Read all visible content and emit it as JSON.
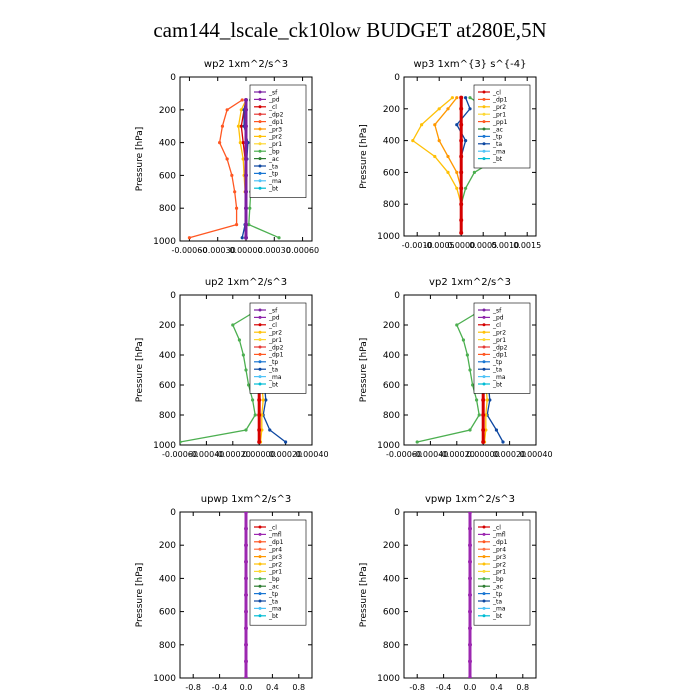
{
  "page_title": "cam144_lscale_ck10low  BUDGET at280E,5N",
  "colors": {
    "sf": "#7b1fa2",
    "pd": "#8e24aa",
    "cl": "#d50000",
    "dp2": "#e53935",
    "dp1": "#ff5722",
    "pr3": "#ff9800",
    "pr2": "#ffc107",
    "pr1": "#fdd835",
    "bp": "#4caf50",
    "ac": "#2e7d32",
    "ta": "#0d47a1",
    "tp": "#1976d2",
    "ma": "#4fc3f7",
    "bt": "#00bcd4",
    "mfl": "#9c27b0",
    "pr4": "#ff7043"
  },
  "chart_data": [
    {
      "type": "line",
      "title": "wp2  1xm^2/s^3",
      "ylabel": "Pressure [hPa]",
      "ylim": [
        1000,
        0
      ],
      "xlim": [
        -0.0007,
        0.0007
      ],
      "xticks": [
        -0.0006,
        -0.0003,
        0.0,
        0.0003,
        0.0006
      ],
      "xticklabels": [
        "-0.00060",
        "-0.00030",
        "0.00000",
        "0.00030",
        "0.00060"
      ],
      "yticks": [
        0,
        200,
        400,
        600,
        800,
        1000
      ],
      "legend": [
        "_sf",
        "_pd",
        "_cl",
        "_dp2",
        "_dp1",
        "_pr3",
        "_pr2",
        "_pr1",
        "_bp",
        "_ac",
        "_ta",
        "_tp",
        "_ma",
        "_bt"
      ],
      "pressure": [
        140,
        200,
        300,
        400,
        500,
        600,
        700,
        800,
        900,
        980
      ],
      "series": [
        {
          "name": "_cl",
          "color_key": "cl",
          "values": [
            0,
            -2e-05,
            -5e-05,
            -3e-05,
            -1e-05,
            0,
            0,
            0,
            0,
            0
          ]
        },
        {
          "name": "_dp1",
          "color_key": "dp1",
          "values": [
            -4e-05,
            -0.0002,
            -0.00025,
            -0.00028,
            -0.0002,
            -0.00015,
            -0.00012,
            -0.0001,
            -0.0001,
            -0.0006
          ]
        },
        {
          "name": "_pr2",
          "color_key": "pr2",
          "values": [
            0,
            -5e-05,
            -8e-05,
            -6e-05,
            -3e-05,
            -2e-05,
            -1e-05,
            0,
            0,
            0
          ]
        },
        {
          "name": "_bp",
          "color_key": "bp",
          "values": [
            5e-05,
            0.0001,
            0.0002,
            0.00028,
            0.00022,
            0.0001,
            5e-05,
            4e-05,
            3e-05,
            0.00035
          ]
        },
        {
          "name": "_ta",
          "color_key": "ta",
          "values": [
            0,
            -2e-05,
            -2e-05,
            2e-05,
            1e-05,
            0,
            0,
            0,
            -1e-05,
            -4e-05
          ]
        },
        {
          "name": "_bt",
          "color_key": "sf",
          "values": [
            0,
            0,
            0,
            0,
            0,
            0,
            0,
            0,
            0,
            0
          ]
        }
      ]
    },
    {
      "type": "line",
      "title": "wp3  1xm^{3} s^{-4}",
      "ylabel": "Pressure [hPa]",
      "ylim": [
        1000,
        0
      ],
      "xlim": [
        -0.0013,
        0.0017
      ],
      "xticks": [
        -0.001,
        -0.0005,
        0.0,
        0.0005,
        0.001,
        0.0015
      ],
      "xticklabels": [
        "-0.0010",
        "-0.0005",
        "0.0000",
        "0.0005",
        "0.0010",
        "0.0015"
      ],
      "yticks": [
        0,
        200,
        400,
        600,
        800,
        1000
      ],
      "legend": [
        "_cl",
        "_dp1",
        "_pr2",
        "_pr1",
        "_pp1",
        "_ac",
        "_tp",
        "_ta",
        "_ma",
        "_bt"
      ],
      "pressure": [
        130,
        200,
        300,
        400,
        500,
        600,
        700,
        800,
        900,
        980
      ],
      "series": [
        {
          "name": "_pr2",
          "color_key": "pr2",
          "values": [
            -0.0002,
            -0.0005,
            -0.0009,
            -0.0011,
            -0.0006,
            -0.0003,
            -0.0001,
            0,
            0,
            0
          ]
        },
        {
          "name": "_pr1",
          "color_key": "pr3",
          "values": [
            -0.0001,
            -0.0003,
            -0.0006,
            -0.0005,
            -0.0003,
            -0.0001,
            0,
            0,
            0,
            0
          ]
        },
        {
          "name": "_ac",
          "color_key": "bp",
          "values": [
            0.0002,
            0.0006,
            0.0011,
            0.0015,
            0.0009,
            0.0003,
            0.0001,
            0,
            0,
            0
          ]
        },
        {
          "name": "_tp",
          "color_key": "ta",
          "values": [
            0.0001,
            0.0002,
            -0.0001,
            0.0001,
            0.0,
            0.0,
            0,
            0,
            0,
            0
          ]
        },
        {
          "name": "_bt",
          "color_key": "cl",
          "values": [
            0,
            0,
            0,
            0,
            0,
            0,
            0,
            0,
            0,
            0
          ]
        }
      ]
    },
    {
      "type": "line",
      "title": "up2  1xm^2/s^3",
      "ylabel": "Pressure [hPa]",
      "ylim": [
        1000,
        0
      ],
      "xlim": [
        -0.0006,
        0.0004
      ],
      "xticks": [
        -0.0006,
        -0.0004,
        -0.0002,
        0.0,
        0.0002,
        0.0004
      ],
      "xticklabels": [
        "-0.00060",
        "-0.00040",
        "-0.00020",
        "0.00000",
        "0.00020",
        "0.00040"
      ],
      "yticks": [
        0,
        200,
        400,
        600,
        800,
        1000
      ],
      "legend": [
        "_sf",
        "_pd",
        "_cl",
        "_pr2",
        "_pr1",
        "_dp2",
        "_dp1",
        "_tp",
        "_ta",
        "_ma",
        "_bt"
      ],
      "pressure": [
        120,
        200,
        300,
        400,
        500,
        600,
        700,
        800,
        900,
        980
      ],
      "series": [
        {
          "name": "_dp1",
          "color_key": "bp",
          "values": [
            -5e-05,
            -0.0002,
            -0.00015,
            -0.00012,
            -0.0001,
            -8e-05,
            -5e-05,
            -3e-05,
            -0.0001,
            -0.0006
          ]
        },
        {
          "name": "_tp",
          "color_key": "ta",
          "values": [
            2e-05,
            3e-05,
            4e-05,
            3e-05,
            3e-05,
            4e-05,
            5e-05,
            3e-05,
            8e-05,
            0.0002
          ]
        },
        {
          "name": "_pr1",
          "color_key": "pr2",
          "values": [
            0,
            1e-05,
            1e-05,
            1e-05,
            1e-05,
            2e-05,
            3e-05,
            2e-05,
            2e-05,
            1e-05
          ]
        },
        {
          "name": "_bt",
          "color_key": "cl",
          "values": [
            0,
            0,
            0,
            0,
            0,
            0,
            0,
            0,
            0,
            0
          ]
        }
      ]
    },
    {
      "type": "line",
      "title": "vp2  1xm^2/s^3",
      "ylabel": "Pressure [hPa]",
      "ylim": [
        1000,
        0
      ],
      "xlim": [
        -0.0006,
        0.0004
      ],
      "xticks": [
        -0.0006,
        -0.0004,
        -0.0002,
        0.0,
        0.0002,
        0.0004
      ],
      "xticklabels": [
        "-0.00060",
        "-0.00040",
        "-0.00020",
        "0.00000",
        "0.00020",
        "0.00040"
      ],
      "yticks": [
        0,
        200,
        400,
        600,
        800,
        1000
      ],
      "legend": [
        "_sf",
        "_pd",
        "_cl",
        "_pr2",
        "_pr1",
        "_dp2",
        "_dp1",
        "_tp",
        "_ta",
        "_ma",
        "_bt"
      ],
      "pressure": [
        120,
        200,
        300,
        400,
        500,
        600,
        700,
        800,
        900,
        980
      ],
      "series": [
        {
          "name": "_dp1",
          "color_key": "bp",
          "values": [
            -5e-05,
            -0.0002,
            -0.00015,
            -0.00012,
            -0.0001,
            -8e-05,
            -5e-05,
            -3e-05,
            -0.0001,
            -0.0005
          ]
        },
        {
          "name": "_tp",
          "color_key": "ta",
          "values": [
            2e-05,
            3e-05,
            4e-05,
            3e-05,
            3e-05,
            4e-05,
            5e-05,
            3e-05,
            0.0001,
            0.00015
          ]
        },
        {
          "name": "_pr1",
          "color_key": "pr2",
          "values": [
            0,
            1e-05,
            1e-05,
            1e-05,
            1e-05,
            2e-05,
            3e-05,
            2e-05,
            2e-05,
            1e-05
          ]
        },
        {
          "name": "_bt",
          "color_key": "cl",
          "values": [
            0,
            0,
            0,
            0,
            0,
            0,
            0,
            0,
            0,
            0
          ]
        }
      ]
    },
    {
      "type": "line",
      "title": "upwp  1xm^2/s^3",
      "ylabel": "Pressure [hPa]",
      "ylim": [
        1000,
        0
      ],
      "xlim": [
        -1.0,
        1.0
      ],
      "xticks": [
        -0.8,
        -0.4,
        0.0,
        0.4,
        0.8
      ],
      "xticklabels": [
        "-0.8",
        "-0.4",
        "0.0",
        "0.4",
        "0.8"
      ],
      "yticks": [
        0,
        200,
        400,
        600,
        800,
        1000
      ],
      "legend": [
        "_cl",
        "_mfl",
        "_dp1",
        "_pr4",
        "_pr3",
        "_pr2",
        "_pr1",
        "_bp",
        "_ac",
        "_tp",
        "_ta",
        "_ma",
        "_bt"
      ],
      "pressure": [
        0,
        100,
        200,
        300,
        400,
        500,
        600,
        700,
        800,
        900,
        1000
      ],
      "series": [
        {
          "name": "_bt",
          "color_key": "mfl",
          "values": [
            0,
            0,
            0,
            0,
            0,
            0,
            0,
            0,
            0,
            0,
            0
          ]
        }
      ]
    },
    {
      "type": "line",
      "title": "vpwp  1xm^2/s^3",
      "ylabel": "Pressure [hPa]",
      "ylim": [
        1000,
        0
      ],
      "xlim": [
        -1.0,
        1.0
      ],
      "xticks": [
        -0.8,
        -0.4,
        0.0,
        0.4,
        0.8
      ],
      "xticklabels": [
        "-0.8",
        "-0.4",
        "0.0",
        "0.4",
        "0.8"
      ],
      "yticks": [
        0,
        200,
        400,
        600,
        800,
        1000
      ],
      "legend": [
        "_cl",
        "_mfl",
        "_dp1",
        "_pr4",
        "_pr3",
        "_pr2",
        "_pr1",
        "_bp",
        "_ac",
        "_tp",
        "_ta",
        "_ma",
        "_bt"
      ],
      "pressure": [
        0,
        100,
        200,
        300,
        400,
        500,
        600,
        700,
        800,
        900,
        1000
      ],
      "series": [
        {
          "name": "_bt",
          "color_key": "mfl",
          "values": [
            0,
            0,
            0,
            0,
            0,
            0,
            0,
            0,
            0,
            0,
            0
          ]
        }
      ]
    }
  ]
}
